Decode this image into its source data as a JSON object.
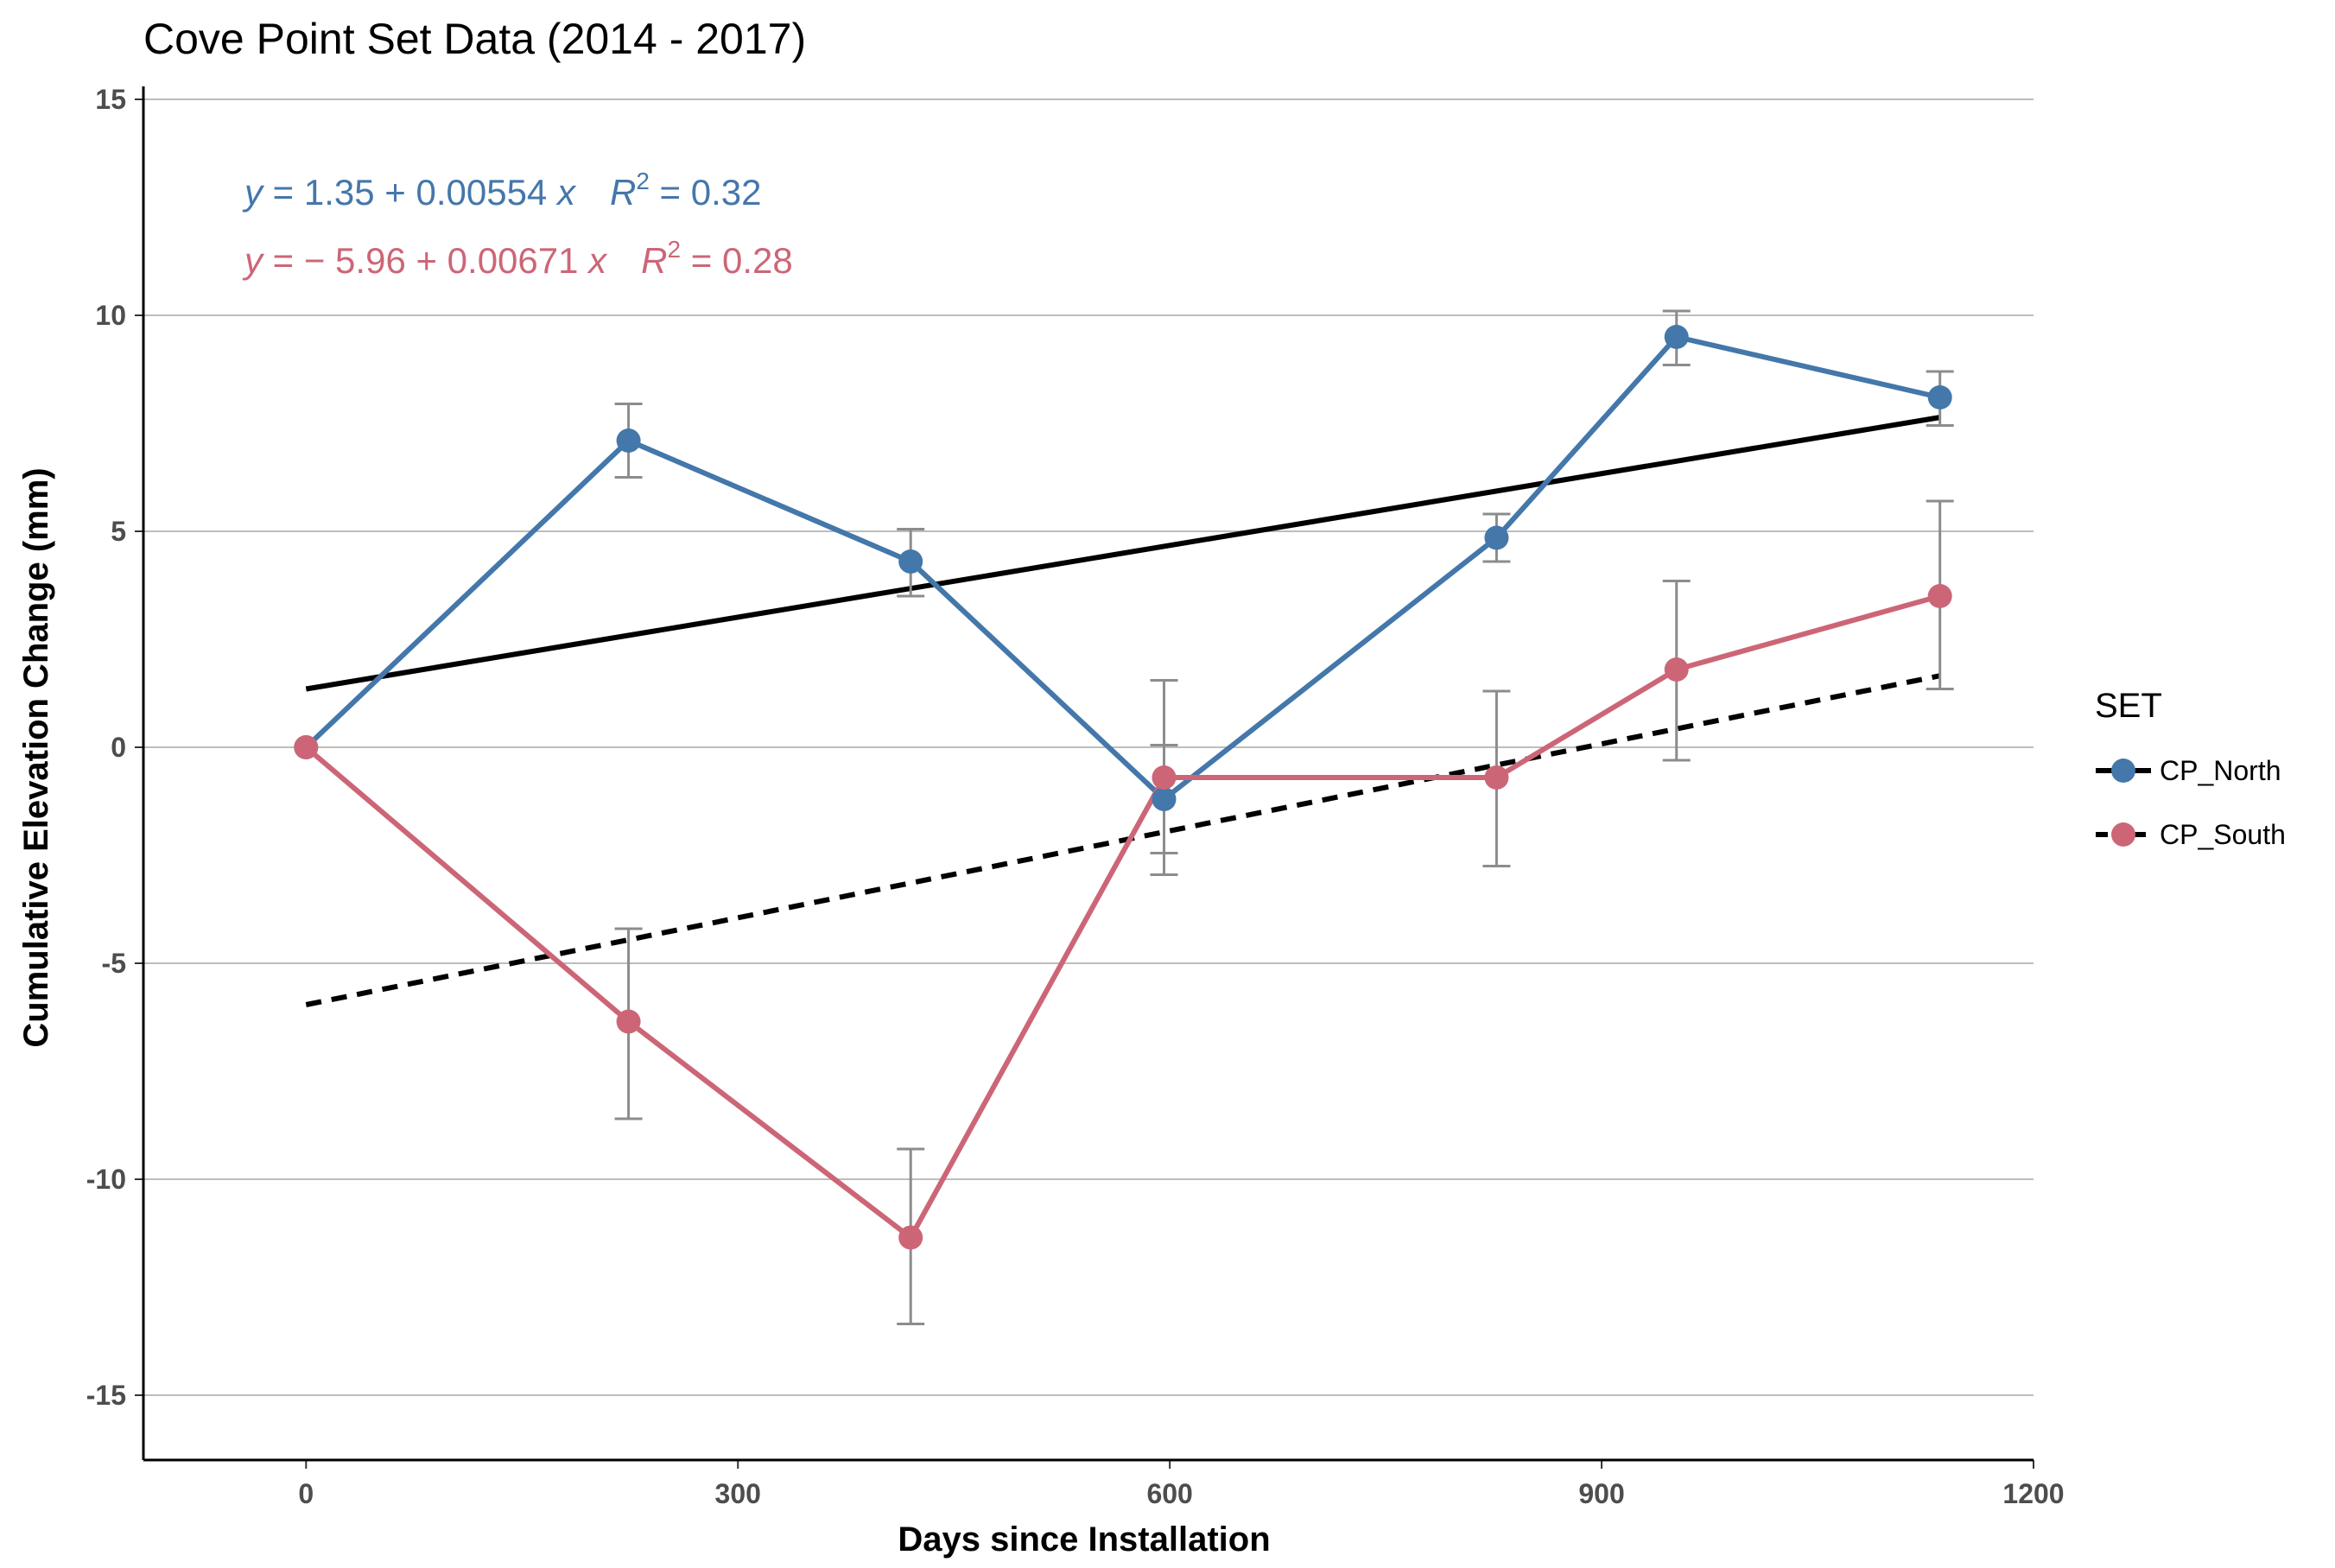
{
  "chart_data": {
    "type": "line",
    "title": "Cove Point Set Data (2014 - 2017)",
    "xlabel": "Days since Installation",
    "ylabel": "Cumulative Elevation Change (mm)",
    "xlim": [
      -113,
      1200
    ],
    "ylim": [
      -16.5,
      15.3
    ],
    "xticks": [
      "0",
      "300",
      "600",
      "900",
      "1200"
    ],
    "yticks": [
      "-15",
      "-10",
      "-5",
      "0",
      "5",
      "10",
      "15"
    ],
    "grid": "horizontal major lines",
    "legend": {
      "title": "SET",
      "placement": "right",
      "entries": [
        "CP_North",
        "CP_South"
      ]
    },
    "series": [
      {
        "name": "CP_North",
        "color": "#4477aa",
        "x": [
          0,
          224,
          420,
          596,
          827,
          952,
          1135
        ],
        "values": [
          0,
          7.1,
          4.3,
          -1.2,
          4.85,
          9.5,
          8.1
        ],
        "err_low": [
          0,
          6.25,
          3.5,
          -2.45,
          4.3,
          8.85,
          7.45
        ],
        "err_high": [
          0,
          7.95,
          5.05,
          0.05,
          5.4,
          10.1,
          8.7
        ]
      },
      {
        "name": "CP_South",
        "color": "#cc6677",
        "x": [
          0,
          224,
          420,
          596,
          827,
          952,
          1135
        ],
        "values": [
          0,
          -6.35,
          -11.35,
          -0.7,
          -0.7,
          1.8,
          3.5
        ],
        "err_low": [
          0,
          -8.6,
          -13.35,
          -2.95,
          -2.75,
          -0.3,
          1.35
        ],
        "err_high": [
          0,
          -4.2,
          -9.3,
          1.55,
          1.3,
          3.85,
          5.7
        ]
      }
    ],
    "fits": [
      {
        "series": "CP_North",
        "intercept": 1.35,
        "slope": 0.00554,
        "x_range": [
          0,
          1135
        ],
        "linetype": "solid",
        "color": "#000000",
        "equation": {
          "y": "y",
          "rhs": " = 1.35 + 0.00554 ",
          "x": "x",
          "r": "R",
          "sup": "2",
          "r2": " = 0.32"
        },
        "text_color": "#4477aa"
      },
      {
        "series": "CP_South",
        "intercept": -5.96,
        "slope": 0.00671,
        "x_range": [
          0,
          1135
        ],
        "linetype": "dashed",
        "color": "#000000",
        "equation": {
          "y": "y",
          "rhs": " = − 5.96 + 0.00671 ",
          "x": "x",
          "r": "R",
          "sup": "2",
          "r2": " = 0.28"
        },
        "text_color": "#cc6677"
      }
    ],
    "errorbar_color": "#8c8c8c"
  }
}
